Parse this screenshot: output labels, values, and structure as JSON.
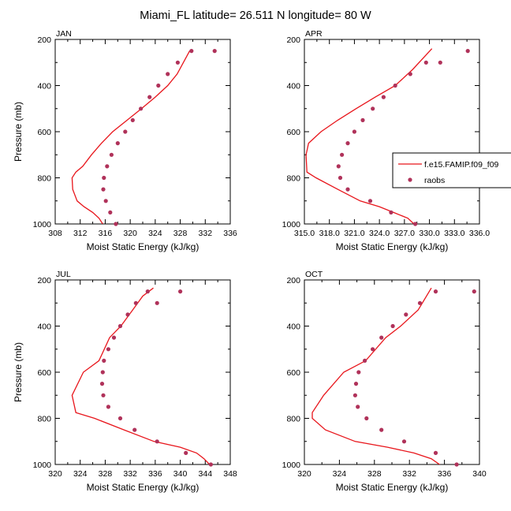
{
  "figure": {
    "title": "Miami_FL  latitude= 26.511 N longitude= 80 W"
  },
  "legend": {
    "model": "f.e15.FAMIP.f09_f09",
    "obs": "raobs"
  },
  "colors": {
    "model_line": "#e8151b",
    "obs_marker": "#b0325a"
  },
  "chart_data": [
    {
      "type": "line",
      "panel_label": "JAN",
      "xlabel": "Moist Static Energy (kJ/kg)",
      "ylabel": "Pressure (mb)",
      "xlim": [
        308,
        336
      ],
      "ylim": [
        1000,
        200
      ],
      "x_ticks": [
        "308",
        "312",
        "316",
        "320",
        "324",
        "328",
        "332",
        "336"
      ],
      "y_ticks": [
        "200",
        "400",
        "600",
        "800",
        "1000"
      ],
      "y_scale": "inverted",
      "grid": false,
      "series": [
        {
          "name": "f.e15.FAMIP.f09_f09",
          "style": "line",
          "x": [
            315.6,
            315.0,
            314.0,
            312.6,
            311.5,
            310.8,
            310.7,
            311.3,
            312.4,
            313.8,
            315.4,
            317.2,
            319.5,
            321.8,
            324.0,
            326.0,
            327.5,
            329.5
          ],
          "y": [
            1000,
            975,
            950,
            925,
            900,
            850,
            800,
            775,
            750,
            700,
            650,
            600,
            550,
            500,
            450,
            400,
            350,
            250
          ]
        },
        {
          "name": "raobs",
          "style": "markers",
          "x": [
            317.7,
            316.8,
            316.1,
            315.7,
            315.8,
            316.3,
            317.0,
            318.0,
            319.2,
            320.4,
            321.7,
            323.1,
            324.5,
            326.0,
            327.6,
            329.8,
            333.5
          ],
          "y": [
            1000,
            950,
            900,
            850,
            800,
            750,
            700,
            650,
            600,
            550,
            500,
            450,
            400,
            350,
            300,
            250,
            250
          ]
        }
      ]
    },
    {
      "type": "line",
      "panel_label": "APR",
      "xlabel": "Moist Static Energy (kJ/kg)",
      "ylabel": "",
      "xlim": [
        315.0,
        336.0
      ],
      "ylim": [
        1000,
        200
      ],
      "x_ticks": [
        "315.0",
        "318.0",
        "321.0",
        "324.0",
        "327.0",
        "330.0",
        "333.0",
        "336.0"
      ],
      "y_ticks": [
        "200",
        "400",
        "600",
        "800",
        "1000"
      ],
      "y_scale": "inverted",
      "grid": false,
      "series": [
        {
          "name": "f.e15.FAMIP.f09_f09",
          "style": "line",
          "x": [
            328.6,
            327.4,
            325.7,
            324.0,
            321.7,
            319.0,
            316.4,
            315.3,
            315.2,
            315.5,
            317.0,
            319.0,
            321.2,
            323.5,
            325.9,
            328.0,
            330.3
          ],
          "y": [
            1015,
            975,
            950,
            925,
            900,
            850,
            800,
            775,
            700,
            650,
            600,
            550,
            500,
            450,
            400,
            330,
            240
          ]
        },
        {
          "name": "raobs",
          "style": "markers",
          "x": [
            328.3,
            325.4,
            322.9,
            320.2,
            319.3,
            319.1,
            319.5,
            320.2,
            321.0,
            322.0,
            323.2,
            324.5,
            325.9,
            327.7,
            329.6,
            331.3,
            334.6
          ],
          "y": [
            1000,
            950,
            900,
            850,
            800,
            750,
            700,
            650,
            600,
            550,
            500,
            450,
            400,
            350,
            300,
            300,
            250
          ]
        }
      ]
    },
    {
      "type": "line",
      "panel_label": "JUL",
      "xlabel": "Moist Static Energy (kJ/kg)",
      "ylabel": "Pressure (mb)",
      "xlim": [
        320,
        348
      ],
      "ylim": [
        1000,
        200
      ],
      "x_ticks": [
        "320",
        "324",
        "328",
        "332",
        "336",
        "340",
        "344",
        "348"
      ],
      "y_ticks": [
        "200",
        "400",
        "600",
        "800",
        "1000"
      ],
      "y_scale": "inverted",
      "grid": false,
      "series": [
        {
          "name": "f.e15.FAMIP.f09_f09",
          "style": "line",
          "x": [
            344.7,
            343.8,
            342.6,
            340.0,
            335.8,
            331.0,
            326.3,
            323.3,
            322.7,
            324.5,
            327.0,
            328.7,
            330.5,
            332.4,
            334.0,
            335.7
          ],
          "y": [
            1000,
            975,
            950,
            925,
            900,
            850,
            800,
            775,
            700,
            600,
            550,
            450,
            400,
            330,
            270,
            235
          ]
        },
        {
          "name": "raobs",
          "style": "markers",
          "x": [
            344.9,
            340.9,
            336.3,
            332.7,
            330.4,
            328.5,
            327.7,
            327.5,
            327.6,
            327.8,
            328.5,
            329.4,
            330.4,
            331.6,
            332.9,
            334.8,
            336.3,
            340.0
          ],
          "y": [
            1000,
            950,
            900,
            850,
            800,
            750,
            700,
            650,
            600,
            550,
            500,
            450,
            400,
            350,
            300,
            250,
            300,
            250
          ]
        }
      ]
    },
    {
      "type": "line",
      "panel_label": "OCT",
      "xlabel": "Moist Static Energy (kJ/kg)",
      "ylabel": "",
      "xlim": [
        320,
        340
      ],
      "ylim": [
        1000,
        200
      ],
      "x_ticks": [
        "320",
        "324",
        "328",
        "332",
        "336",
        "340"
      ],
      "y_ticks": [
        "200",
        "400",
        "600",
        "800",
        "1000"
      ],
      "y_scale": "inverted",
      "grid": false,
      "series": [
        {
          "name": "f.e15.FAMIP.f09_f09",
          "style": "line",
          "x": [
            336.0,
            334.5,
            332.5,
            329.5,
            325.8,
            322.4,
            320.9,
            320.9,
            322.2,
            324.5,
            327.0,
            329.3,
            331.0,
            333.0,
            334.5
          ],
          "y": [
            1015,
            975,
            950,
            925,
            900,
            850,
            800,
            775,
            700,
            600,
            550,
            450,
            400,
            330,
            235
          ]
        },
        {
          "name": "raobs",
          "style": "markers",
          "x": [
            337.4,
            335.0,
            331.4,
            328.8,
            327.1,
            326.1,
            325.8,
            325.9,
            326.2,
            326.9,
            327.8,
            328.8,
            330.1,
            331.6,
            333.2,
            335.0,
            339.4
          ],
          "y": [
            1000,
            950,
            900,
            850,
            800,
            750,
            700,
            650,
            600,
            550,
            500,
            450,
            400,
            350,
            300,
            250,
            250
          ]
        }
      ]
    }
  ]
}
